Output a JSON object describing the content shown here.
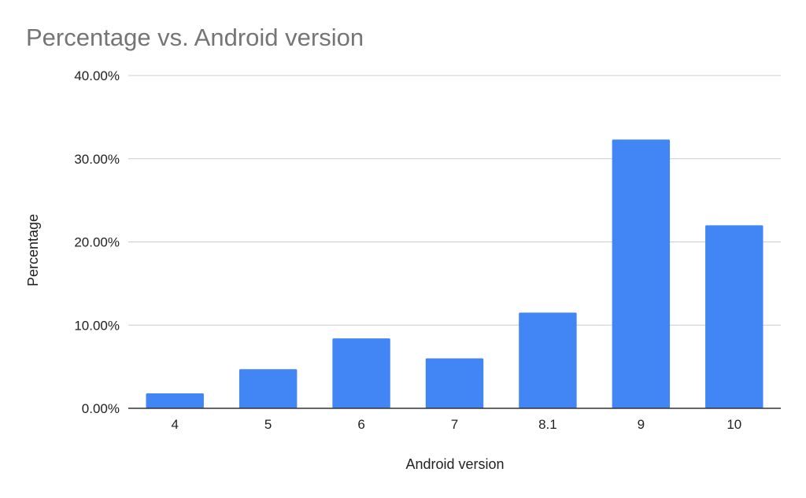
{
  "chart_data": {
    "type": "bar",
    "title": "Percentage vs. Android version",
    "xlabel": "Android version",
    "ylabel": "Percentage",
    "categories": [
      "4",
      "5",
      "6",
      "7",
      "8.1",
      "9",
      "10"
    ],
    "values": [
      1.8,
      4.7,
      8.4,
      6.0,
      11.5,
      32.3,
      22.0
    ],
    "ylim": [
      0,
      40
    ],
    "y_ticks": [
      {
        "value": 0,
        "label": "0.00%"
      },
      {
        "value": 10,
        "label": "10.00%"
      },
      {
        "value": 20,
        "label": "20.00%"
      },
      {
        "value": 30,
        "label": "30.00%"
      },
      {
        "value": 40,
        "label": "40.00%"
      }
    ],
    "grid": true,
    "legend": "none",
    "colors": {
      "bar": "#4285f4",
      "grid": "#cccccc",
      "baseline": "#333333"
    }
  }
}
